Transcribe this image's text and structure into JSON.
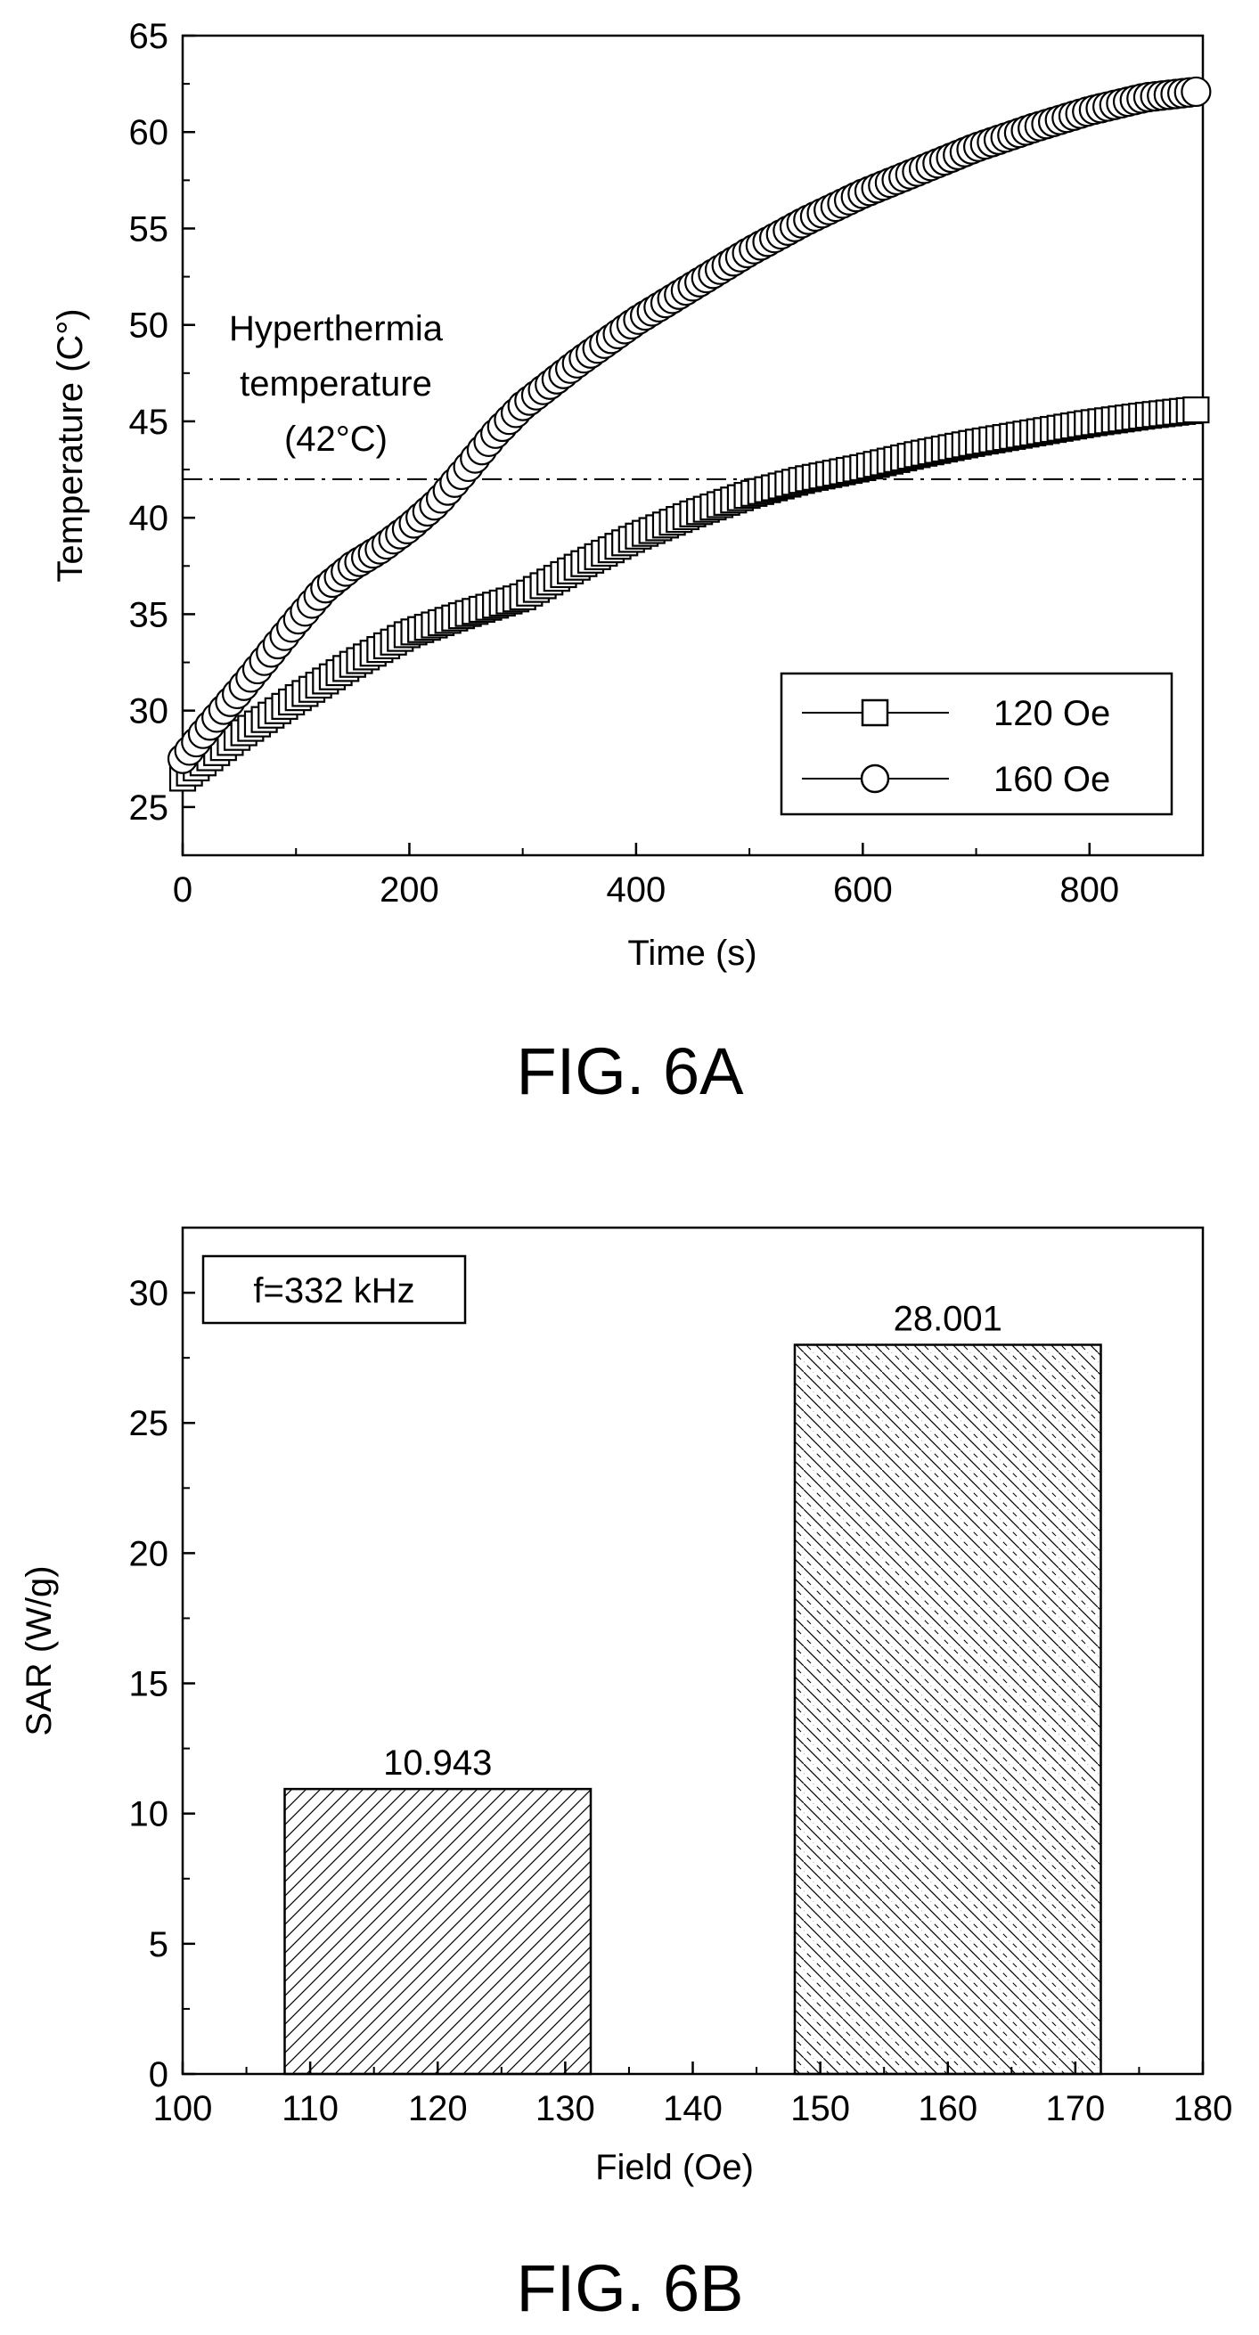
{
  "chart_data": [
    {
      "type": "scatter",
      "figure_label": "FIG. 6A",
      "xlabel": "Time (s)",
      "ylabel": "Temperature (C°)",
      "xlim": [
        0,
        900
      ],
      "ylim": [
        22.5,
        65
      ],
      "xticks": [
        0,
        200,
        400,
        600,
        800
      ],
      "yticks": [
        25,
        30,
        35,
        40,
        45,
        50,
        55,
        60,
        65
      ],
      "grid": false,
      "legend_position": "bottom-right",
      "reference_line": {
        "y": 42,
        "style": "dash-dot",
        "annotation": [
          "Hyperthermia",
          "temperature",
          "(42°C)"
        ]
      },
      "series": [
        {
          "name": "120 Oe",
          "marker": "square",
          "x": [
            0,
            50,
            100,
            150,
            200,
            250,
            300,
            350,
            400,
            450,
            500,
            550,
            600,
            650,
            700,
            750,
            800,
            850,
            895
          ],
          "y": [
            26.5,
            28.7,
            30.6,
            32.4,
            34.0,
            35.0,
            35.9,
            37.5,
            39.0,
            40.2,
            41.2,
            42.0,
            42.6,
            43.3,
            43.9,
            44.4,
            44.9,
            45.3,
            45.6
          ]
        },
        {
          "name": "160 Oe",
          "marker": "circle",
          "x": [
            0,
            25,
            50,
            75,
            100,
            125,
            150,
            175,
            200,
            225,
            250,
            275,
            300,
            350,
            400,
            450,
            500,
            550,
            600,
            650,
            700,
            750,
            800,
            850,
            895
          ],
          "y": [
            27.5,
            29.3,
            31.0,
            32.8,
            34.6,
            36.3,
            37.5,
            38.4,
            39.5,
            40.8,
            42.5,
            44.3,
            45.8,
            48.1,
            50.2,
            52.0,
            53.8,
            55.4,
            56.8,
            58.0,
            59.2,
            60.2,
            61.1,
            61.8,
            62.1
          ]
        }
      ]
    },
    {
      "type": "bar",
      "figure_label": "FIG. 6B",
      "xlabel": "Field (Oe)",
      "ylabel": "SAR (W/g)",
      "xlim": [
        100,
        180
      ],
      "ylim": [
        0,
        32.5
      ],
      "xticks": [
        100,
        110,
        120,
        130,
        140,
        150,
        160,
        170,
        180
      ],
      "yticks": [
        0,
        5,
        10,
        15,
        20,
        25,
        30
      ],
      "grid": false,
      "annotation_box": "f=332 kHz",
      "bars": [
        {
          "x": 120,
          "width": 24,
          "value": 10.943,
          "label": "10.943",
          "pattern": "hatch"
        },
        {
          "x": 160,
          "width": 24,
          "value": 28.001,
          "label": "28.001",
          "pattern": "cross-hatch-dashed"
        }
      ]
    }
  ]
}
